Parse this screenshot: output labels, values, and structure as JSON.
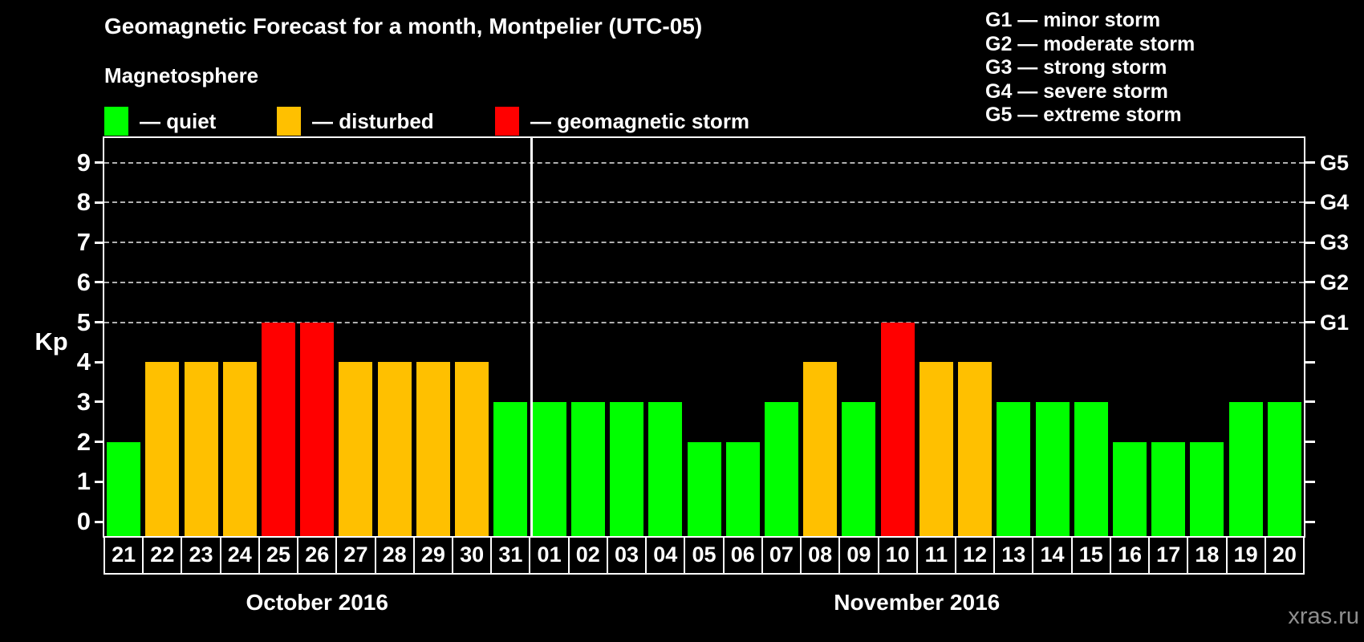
{
  "header": {
    "title": "Geomagnetic Forecast for a month, Montpelier (UTC-05)",
    "subtitle": "Magnetosphere"
  },
  "legend": [
    {
      "label": "— quiet",
      "status": "quiet"
    },
    {
      "label": "— disturbed",
      "status": "disturbed"
    },
    {
      "label": "— geomagnetic storm",
      "status": "storm"
    }
  ],
  "g_legend": [
    "G1 — minor storm",
    "G2 — moderate storm",
    "G3 — strong storm",
    "G4 — severe storm",
    "G5 — extreme storm"
  ],
  "axes": {
    "y_left_label": "Kp",
    "y_left_ticks": [
      "0",
      "1",
      "2",
      "3",
      "4",
      "5",
      "6",
      "7",
      "8",
      "9"
    ],
    "y_right_labels": [
      "G1",
      "G2",
      "G3",
      "G4",
      "G5"
    ]
  },
  "colors": {
    "background": "#000000",
    "axis": "#ffffff",
    "grid": "#b0b0b0",
    "quiet": "#00ff00",
    "disturbed": "#ffc000",
    "storm": "#ff0000"
  },
  "chart_data": {
    "type": "bar",
    "title": "Geomagnetic Forecast for a month, Montpelier (UTC-05)",
    "ylabel": "Kp",
    "ylim": [
      0,
      9
    ],
    "grid": "dashed horizontal at Kp 5-9",
    "gridlines_at_kp": [
      5,
      6,
      7,
      8,
      9
    ],
    "g_scale": {
      "G1": 5,
      "G2": 6,
      "G3": 7,
      "G4": 8,
      "G5": 9
    },
    "months": [
      {
        "label": "October 2016",
        "start_index": 0,
        "count": 11
      },
      {
        "label": "November 2016",
        "start_index": 11,
        "count": 20
      }
    ],
    "days": [
      "21",
      "22",
      "23",
      "24",
      "25",
      "26",
      "27",
      "28",
      "29",
      "30",
      "31",
      "01",
      "02",
      "03",
      "04",
      "05",
      "06",
      "07",
      "08",
      "09",
      "10",
      "11",
      "12",
      "13",
      "14",
      "15",
      "16",
      "17",
      "18",
      "19",
      "20"
    ],
    "values": [
      2,
      4,
      4,
      4,
      5,
      5,
      4,
      4,
      4,
      4,
      3,
      3,
      3,
      3,
      3,
      2,
      2,
      3,
      4,
      3,
      5,
      4,
      4,
      3,
      3,
      3,
      2,
      2,
      2,
      3,
      3
    ],
    "statuses": [
      "quiet",
      "disturbed",
      "disturbed",
      "disturbed",
      "storm",
      "storm",
      "disturbed",
      "disturbed",
      "disturbed",
      "disturbed",
      "quiet",
      "quiet",
      "quiet",
      "quiet",
      "quiet",
      "quiet",
      "quiet",
      "quiet",
      "disturbed",
      "quiet",
      "storm",
      "disturbed",
      "disturbed",
      "quiet",
      "quiet",
      "quiet",
      "quiet",
      "quiet",
      "quiet",
      "quiet",
      "quiet"
    ]
  },
  "watermark": "xras.ru"
}
